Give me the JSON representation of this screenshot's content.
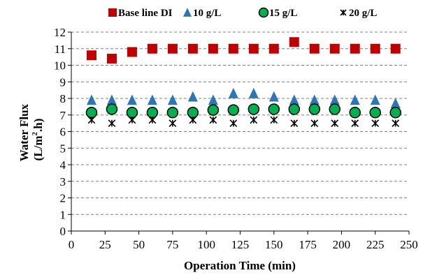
{
  "chart_data": {
    "type": "scatter",
    "xlabel": "Operation Time (min)",
    "ylabel": [
      "Water Flux",
      "(L/m",
      "2",
      ".h)"
    ],
    "xlim": [
      0,
      250
    ],
    "ylim": [
      0,
      12
    ],
    "xticks": [
      0,
      25,
      50,
      75,
      100,
      125,
      150,
      175,
      200,
      225,
      250
    ],
    "yticks": [
      0,
      1,
      2,
      3,
      4,
      5,
      6,
      7,
      8,
      9,
      10,
      11,
      12
    ],
    "grid": "horizontal dashed",
    "legend_position": "top",
    "series": [
      {
        "name": "Base line DI",
        "marker": "square",
        "color": "#C00000",
        "x": [
          15,
          30,
          45,
          60,
          75,
          90,
          105,
          120,
          135,
          150,
          165,
          180,
          195,
          210,
          225,
          240
        ],
        "y": [
          10.6,
          10.4,
          10.8,
          11.0,
          11.0,
          11.0,
          11.0,
          11.0,
          11.0,
          11.0,
          11.4,
          11.0,
          11.0,
          11.0,
          11.0,
          11.0
        ]
      },
      {
        "name": "10 g/L",
        "marker": "triangle",
        "color": "#2E75B6",
        "x": [
          15,
          30,
          45,
          60,
          75,
          90,
          105,
          120,
          135,
          150,
          165,
          180,
          195,
          210,
          225,
          240
        ],
        "y": [
          7.9,
          7.9,
          7.9,
          7.9,
          7.9,
          8.1,
          7.9,
          8.3,
          8.3,
          8.1,
          7.9,
          7.9,
          7.9,
          7.9,
          7.9,
          7.7
        ]
      },
      {
        "name": "15 g/L",
        "marker": "circle",
        "color": "#00B050",
        "x": [
          15,
          30,
          45,
          60,
          75,
          90,
          105,
          120,
          135,
          150,
          165,
          180,
          195,
          210,
          225,
          240
        ],
        "y": [
          7.15,
          7.35,
          7.15,
          7.15,
          7.15,
          7.15,
          7.3,
          7.3,
          7.35,
          7.35,
          7.35,
          7.35,
          7.35,
          7.15,
          7.15,
          7.15
        ]
      },
      {
        "name": "20 g/L",
        "marker": "asterisk",
        "color": "#000000",
        "x": [
          15,
          30,
          45,
          60,
          75,
          90,
          105,
          120,
          135,
          150,
          165,
          180,
          195,
          210,
          225,
          240
        ],
        "y": [
          6.7,
          6.5,
          6.7,
          6.7,
          6.5,
          6.7,
          6.7,
          6.5,
          6.7,
          6.7,
          6.5,
          6.5,
          6.5,
          6.5,
          6.5,
          6.5
        ]
      }
    ]
  }
}
